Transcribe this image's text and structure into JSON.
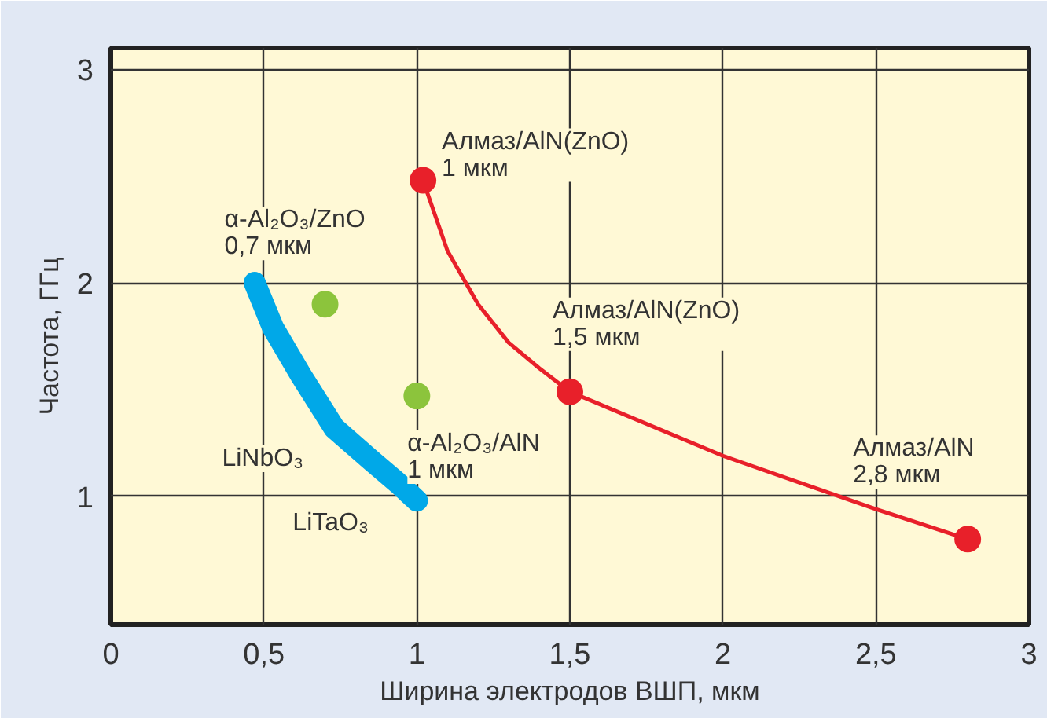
{
  "chart_data": {
    "type": "scatter",
    "xlabel": "Ширина электродов ВШП, мкм",
    "ylabel": "Частота, ГГц",
    "xlim": [
      0,
      3
    ],
    "ylim": [
      0.4,
      3.1
    ],
    "xticks": [
      0,
      {
        "value": 0.5,
        "label": "0,5"
      },
      1,
      {
        "value": 1.5,
        "label": "1,5"
      },
      2,
      {
        "value": 2.5,
        "label": "2,5"
      },
      3
    ],
    "yticks": [
      1,
      2,
      3
    ],
    "grid": true,
    "series": [
      {
        "type": "line",
        "marker": "none",
        "color": "#00a8e8",
        "x": [
          0.47,
          0.53,
          0.62,
          0.73,
          0.85,
          0.94,
          1.0
        ],
        "values": [
          2.0,
          1.79,
          1.57,
          1.32,
          1.17,
          1.06,
          0.98
        ]
      },
      {
        "type": "line",
        "marker": "none",
        "color": "#e8202a",
        "x": [
          1.02,
          1.1,
          1.2,
          1.3,
          1.4,
          1.5,
          2.0,
          2.5,
          2.8
        ],
        "values": [
          2.48,
          2.15,
          1.9,
          1.72,
          1.6,
          1.49,
          1.19,
          0.94,
          0.8
        ]
      },
      {
        "marker": "circle",
        "color": "#e8202a",
        "x": [
          1.02,
          1.5,
          2.8
        ],
        "values": [
          2.48,
          1.49,
          0.8
        ]
      },
      {
        "marker": "circle",
        "color": "#8cc43c",
        "x": [
          0.7,
          1.0
        ],
        "values": [
          1.9,
          1.47
        ]
      }
    ],
    "annotations": [
      {
        "text": "Алмаз/AlN(ZnO)\n1 мкм",
        "x": 1.02,
        "y": 2.48
      },
      {
        "text": "Алмаз/AlN(ZnO)\n1,5 мкм",
        "x": 1.5,
        "y": 1.49
      },
      {
        "text": "Алмаз/AlN\n2,8 мкм",
        "x": 2.8,
        "y": 0.8
      },
      {
        "text": "α-Al₂O₃/ZnO\n0,7 мкм",
        "x": 0.7,
        "y": 1.9
      },
      {
        "text": "α-Al₂O₃/AlN\n1 мкм",
        "x": 1.0,
        "y": 1.47
      },
      {
        "text": "LiNbO₃",
        "x": 0.62,
        "y": 1.57
      },
      {
        "text": "LiTaO₃",
        "x": 1.0,
        "y": 0.98
      }
    ]
  }
}
